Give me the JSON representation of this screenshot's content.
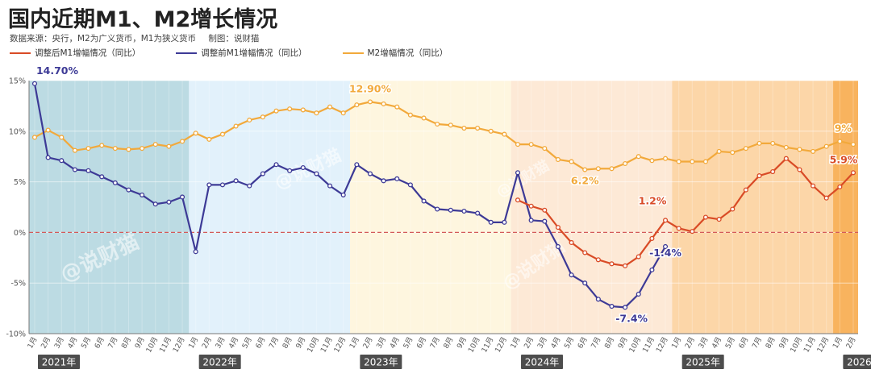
{
  "title": "国内近期M1、M2增长情况",
  "subtitle": {
    "source": "数据来源：央行，M2为广义货币，M1为狭义货币",
    "author": "制图：说财猫"
  },
  "watermark": "@说财猫",
  "colors": {
    "adjusted_m1": "#d94b26",
    "original_m1": "#3d3a96",
    "m2": "#f2a93b",
    "zero_line": "#d35a5a"
  },
  "chart_data": {
    "type": "line",
    "ylim": [
      -10,
      15
    ],
    "y_ticks": [
      "15%",
      "10%",
      "5%",
      "0%",
      "-5%",
      "-10%"
    ],
    "year_labels": [
      "2021年",
      "2022年",
      "2023年",
      "2024年",
      "2025年",
      "2026年"
    ],
    "months": [
      "1月",
      "2月",
      "3月",
      "4月",
      "5月",
      "6月",
      "7月",
      "8月",
      "9月",
      "10月",
      "11月",
      "12月",
      "1月",
      "2月",
      "3月",
      "4月",
      "5月",
      "6月",
      "7月",
      "8月",
      "9月",
      "10月",
      "11月",
      "12月",
      "1月",
      "2月",
      "3月",
      "4月",
      "5月",
      "6月",
      "7月",
      "8月",
      "9月",
      "10月",
      "11月",
      "12月",
      "1月",
      "2月",
      "3月",
      "4月",
      "5月",
      "6月",
      "7月",
      "8月",
      "9月",
      "10月",
      "11月",
      "12月",
      "1月",
      "2月",
      "3月",
      "4月",
      "5月",
      "6月",
      "7月",
      "8月",
      "9月",
      "10月",
      "11月",
      "12月",
      "1月",
      "2月"
    ],
    "series": [
      {
        "name": "调整后M1增幅情况（同比）",
        "start_index": 36,
        "values": [
          3.2,
          2.6,
          2.2,
          0.5,
          -1.0,
          -2.0,
          -2.7,
          -3.1,
          -3.3,
          -2.4,
          -0.6,
          1.2,
          0.4,
          0.1,
          1.5,
          1.3,
          2.3,
          4.2,
          5.6,
          6.0,
          7.3,
          6.2,
          4.6,
          3.4,
          4.5,
          5.9
        ]
      },
      {
        "name": "调整前M1增幅情况（同比）",
        "start_index": 0,
        "values": [
          14.7,
          7.4,
          7.1,
          6.2,
          6.1,
          5.5,
          4.9,
          4.2,
          3.7,
          2.8,
          3.0,
          3.5,
          -1.9,
          4.7,
          4.7,
          5.1,
          4.6,
          5.8,
          6.7,
          6.1,
          6.4,
          5.8,
          4.6,
          3.7,
          6.7,
          5.8,
          5.1,
          5.3,
          4.7,
          3.1,
          2.3,
          2.2,
          2.1,
          1.9,
          1.0,
          1.0,
          5.9,
          1.2,
          1.1,
          -1.4,
          -4.2,
          -5.0,
          -6.6,
          -7.3,
          -7.4,
          -6.1,
          -3.7,
          -1.4
        ]
      },
      {
        "name": "M2增幅情况（同比）",
        "start_index": 0,
        "values": [
          9.4,
          10.1,
          9.4,
          8.1,
          8.3,
          8.6,
          8.3,
          8.2,
          8.3,
          8.7,
          8.5,
          9.0,
          9.8,
          9.2,
          9.7,
          10.5,
          11.1,
          11.4,
          12.0,
          12.2,
          12.1,
          11.8,
          12.4,
          11.8,
          12.6,
          12.9,
          12.7,
          12.4,
          11.6,
          11.3,
          10.7,
          10.6,
          10.3,
          10.3,
          10.0,
          9.7,
          8.7,
          8.7,
          8.3,
          7.2,
          7.0,
          6.2,
          6.3,
          6.3,
          6.8,
          7.5,
          7.1,
          7.3,
          7.0,
          7.0,
          7.0,
          8.0,
          7.9,
          8.3,
          8.8,
          8.8,
          8.4,
          8.2,
          8.0,
          8.5,
          9.0,
          8.7
        ]
      }
    ],
    "annotations": [
      {
        "text": "14.70%",
        "series": 1,
        "index": 0
      },
      {
        "text": "12.90%",
        "series": 2,
        "index": 25
      },
      {
        "text": "6.2%",
        "series": 2,
        "index": 41
      },
      {
        "text": "1.2%",
        "series": 0,
        "index": 47
      },
      {
        "text": "-1.4%",
        "series": 1,
        "index": 47
      },
      {
        "text": "-7.4%",
        "series": 1,
        "index": 44
      },
      {
        "text": "9%",
        "series": 2,
        "index": 60
      },
      {
        "text": "5.9%",
        "series": 0,
        "index": 61
      }
    ],
    "grid": true,
    "legend_position": "top-left"
  }
}
